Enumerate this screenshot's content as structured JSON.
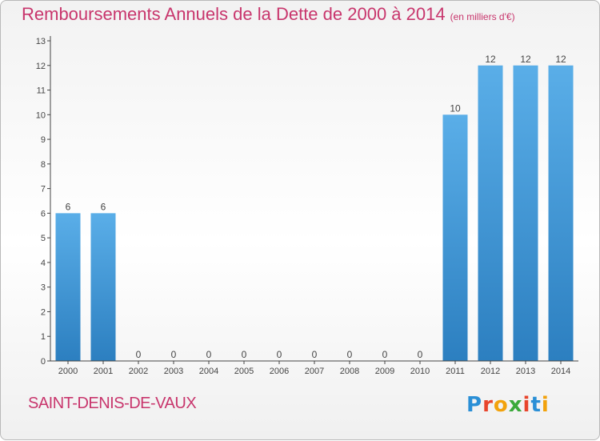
{
  "title": "Remboursements Annuels de la Dette de 2000 à 2014",
  "unit": "(en milliers d'€)",
  "commune": "SAINT-DENIS-DE-VAUX",
  "logo": {
    "text": "Proxiti",
    "letter_colors": [
      "#2a8fd6",
      "#e8452c",
      "#f2a20c",
      "#3aa93a",
      "#e8452c",
      "#2a8fd6",
      "#f2a20c"
    ]
  },
  "colors": {
    "bar_top": "#5aaee8",
    "bar_bottom": "#2c7fc0",
    "title": "#c8356c"
  },
  "chart_data": {
    "type": "bar",
    "categories": [
      "2000",
      "2001",
      "2002",
      "2003",
      "2004",
      "2005",
      "2006",
      "2007",
      "2008",
      "2009",
      "2010",
      "2011",
      "2012",
      "2013",
      "2014"
    ],
    "values": [
      6,
      6,
      0,
      0,
      0,
      0,
      0,
      0,
      0,
      0,
      0,
      10,
      12,
      12,
      12
    ],
    "ylim": [
      0,
      13
    ],
    "yticks": [
      0,
      1,
      2,
      3,
      4,
      5,
      6,
      7,
      8,
      9,
      10,
      11,
      12,
      13
    ],
    "grid": false,
    "data_labels": true
  }
}
